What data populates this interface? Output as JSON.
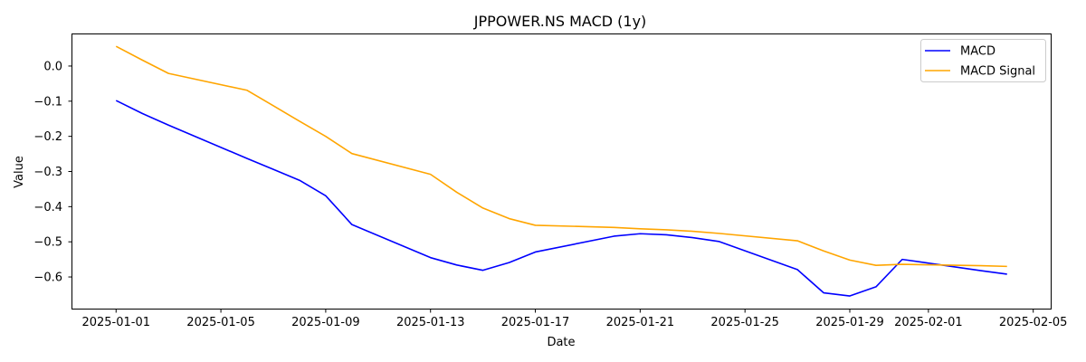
{
  "chart_data": {
    "type": "line",
    "title": "JPPOWER.NS MACD (1y)",
    "xlabel": "Date",
    "ylabel": "Value",
    "xlim": [
      "2024-12-30T08:00",
      "2025-02-05T16:00"
    ],
    "ylim": [
      -0.69,
      0.09
    ],
    "x_ticks": [
      "2025-01-01",
      "2025-01-05",
      "2025-01-09",
      "2025-01-13",
      "2025-01-17",
      "2025-01-21",
      "2025-01-25",
      "2025-01-29",
      "2025-02-01",
      "2025-02-05"
    ],
    "y_ticks": [
      0.0,
      -0.1,
      -0.2,
      -0.3,
      -0.4,
      -0.5,
      -0.6
    ],
    "y_tick_labels": [
      "0.0",
      "−0.1",
      "−0.2",
      "−0.3",
      "−0.4",
      "−0.5",
      "−0.6"
    ],
    "grid": false,
    "legend_position": "top-right",
    "series": [
      {
        "name": "MACD",
        "color": "#0000ff",
        "points": [
          {
            "x": "2025-01-01",
            "y": -0.098
          },
          {
            "x": "2025-01-02",
            "y": -0.135
          },
          {
            "x": "2025-01-03",
            "y": -0.168
          },
          {
            "x": "2025-01-06",
            "y": -0.263
          },
          {
            "x": "2025-01-07",
            "y": -0.294
          },
          {
            "x": "2025-01-08",
            "y": -0.325
          },
          {
            "x": "2025-01-09",
            "y": -0.369
          },
          {
            "x": "2025-01-10",
            "y": -0.451
          },
          {
            "x": "2025-01-13",
            "y": -0.545
          },
          {
            "x": "2025-01-14",
            "y": -0.566
          },
          {
            "x": "2025-01-15",
            "y": -0.581
          },
          {
            "x": "2025-01-16",
            "y": -0.559
          },
          {
            "x": "2025-01-17",
            "y": -0.529
          },
          {
            "x": "2025-01-20",
            "y": -0.484
          },
          {
            "x": "2025-01-21",
            "y": -0.477
          },
          {
            "x": "2025-01-22",
            "y": -0.48
          },
          {
            "x": "2025-01-23",
            "y": -0.488
          },
          {
            "x": "2025-01-24",
            "y": -0.499
          },
          {
            "x": "2025-01-27",
            "y": -0.579
          },
          {
            "x": "2025-01-28",
            "y": -0.645
          },
          {
            "x": "2025-01-29",
            "y": -0.654
          },
          {
            "x": "2025-01-30",
            "y": -0.628
          },
          {
            "x": "2025-01-31",
            "y": -0.55
          },
          {
            "x": "2025-02-03",
            "y": -0.582
          },
          {
            "x": "2025-02-04",
            "y": -0.592
          }
        ]
      },
      {
        "name": "MACD Signal",
        "color": "#ffa500",
        "points": [
          {
            "x": "2025-01-01",
            "y": 0.056
          },
          {
            "x": "2025-01-02",
            "y": 0.017
          },
          {
            "x": "2025-01-03",
            "y": -0.021
          },
          {
            "x": "2025-01-06",
            "y": -0.069
          },
          {
            "x": "2025-01-07",
            "y": -0.113
          },
          {
            "x": "2025-01-08",
            "y": -0.157
          },
          {
            "x": "2025-01-09",
            "y": -0.2
          },
          {
            "x": "2025-01-10",
            "y": -0.249
          },
          {
            "x": "2025-01-13",
            "y": -0.308
          },
          {
            "x": "2025-01-14",
            "y": -0.359
          },
          {
            "x": "2025-01-15",
            "y": -0.404
          },
          {
            "x": "2025-01-16",
            "y": -0.434
          },
          {
            "x": "2025-01-17",
            "y": -0.453
          },
          {
            "x": "2025-01-20",
            "y": -0.459
          },
          {
            "x": "2025-01-21",
            "y": -0.463
          },
          {
            "x": "2025-01-22",
            "y": -0.466
          },
          {
            "x": "2025-01-23",
            "y": -0.47
          },
          {
            "x": "2025-01-24",
            "y": -0.476
          },
          {
            "x": "2025-01-27",
            "y": -0.497
          },
          {
            "x": "2025-01-28",
            "y": -0.526
          },
          {
            "x": "2025-01-29",
            "y": -0.552
          },
          {
            "x": "2025-01-30",
            "y": -0.567
          },
          {
            "x": "2025-01-31",
            "y": -0.564
          },
          {
            "x": "2025-02-03",
            "y": -0.568
          },
          {
            "x": "2025-02-04",
            "y": -0.57
          }
        ]
      }
    ]
  }
}
